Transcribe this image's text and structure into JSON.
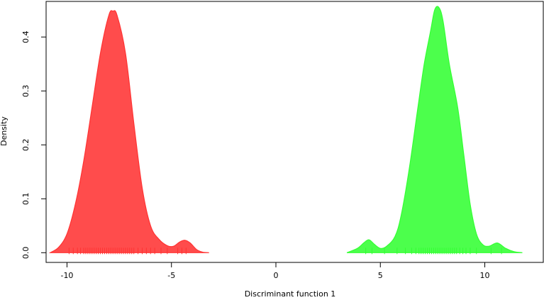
{
  "chart_data": {
    "type": "area",
    "title": "",
    "xlabel": "Discriminant function 1",
    "ylabel": "Density",
    "xlim": [
      -11.0,
      12.8
    ],
    "ylim": [
      -0.018,
      0.466
    ],
    "xticks": [
      -10,
      -5,
      0,
      5,
      10
    ],
    "xtick_labels": [
      "-10",
      "-5",
      "0",
      "5",
      "10"
    ],
    "yticks": [
      0.0,
      0.1,
      0.2,
      0.3,
      0.4
    ],
    "ytick_labels": [
      "0.0",
      "0.1",
      "0.2",
      "0.3",
      "0.4"
    ],
    "grid": false,
    "legend": "none",
    "series": [
      {
        "color": "#ff3333",
        "x": [
          -10.8,
          -10.4,
          -10.0,
          -9.6,
          -9.2,
          -8.8,
          -8.4,
          -8.0,
          -7.8,
          -7.6,
          -7.2,
          -6.8,
          -6.4,
          -6.0,
          -5.6,
          -5.2,
          -4.9,
          -4.6,
          -4.35,
          -4.1,
          -3.8,
          -3.5,
          -3.2
        ],
        "y": [
          0.0,
          0.01,
          0.035,
          0.09,
          0.17,
          0.27,
          0.37,
          0.44,
          0.448,
          0.44,
          0.37,
          0.24,
          0.12,
          0.05,
          0.025,
          0.013,
          0.012,
          0.02,
          0.023,
          0.018,
          0.006,
          0.001,
          0.0
        ],
        "rug": [
          -9.9,
          -9.7,
          -9.5,
          -9.35,
          -9.2,
          -9.1,
          -9.0,
          -8.9,
          -8.8,
          -8.7,
          -8.6,
          -8.5,
          -8.4,
          -8.3,
          -8.2,
          -8.1,
          -8.0,
          -7.9,
          -7.8,
          -7.7,
          -7.6,
          -7.5,
          -7.4,
          -7.3,
          -7.2,
          -7.1,
          -7.0,
          -6.9,
          -6.8,
          -6.6,
          -6.4,
          -6.2,
          -6.0,
          -5.8,
          -5.5,
          -5.2,
          -4.7,
          -4.5,
          -4.3
        ]
      },
      {
        "color": "#33ff33",
        "x": [
          3.4,
          3.9,
          4.2,
          4.45,
          4.7,
          5.0,
          5.3,
          5.7,
          6.0,
          6.4,
          6.8,
          7.1,
          7.4,
          7.6,
          7.8,
          8.0,
          8.3,
          8.7,
          9.0,
          9.3,
          9.6,
          9.9,
          10.2,
          10.6,
          11.0,
          11.4,
          11.8
        ],
        "y": [
          0.0,
          0.008,
          0.018,
          0.024,
          0.016,
          0.008,
          0.012,
          0.03,
          0.07,
          0.16,
          0.27,
          0.35,
          0.41,
          0.45,
          0.455,
          0.43,
          0.35,
          0.27,
          0.18,
          0.09,
          0.035,
          0.015,
          0.012,
          0.018,
          0.008,
          0.002,
          0.0
        ],
        "rug": [
          4.3,
          4.6,
          5.2,
          5.8,
          6.2,
          6.5,
          6.7,
          6.85,
          6.95,
          7.05,
          7.15,
          7.25,
          7.35,
          7.45,
          7.55,
          7.65,
          7.75,
          7.85,
          7.95,
          8.05,
          8.15,
          8.25,
          8.35,
          8.45,
          8.55,
          8.65,
          8.8,
          8.95,
          9.1,
          9.3,
          9.6,
          10.3,
          10.8
        ]
      }
    ]
  }
}
